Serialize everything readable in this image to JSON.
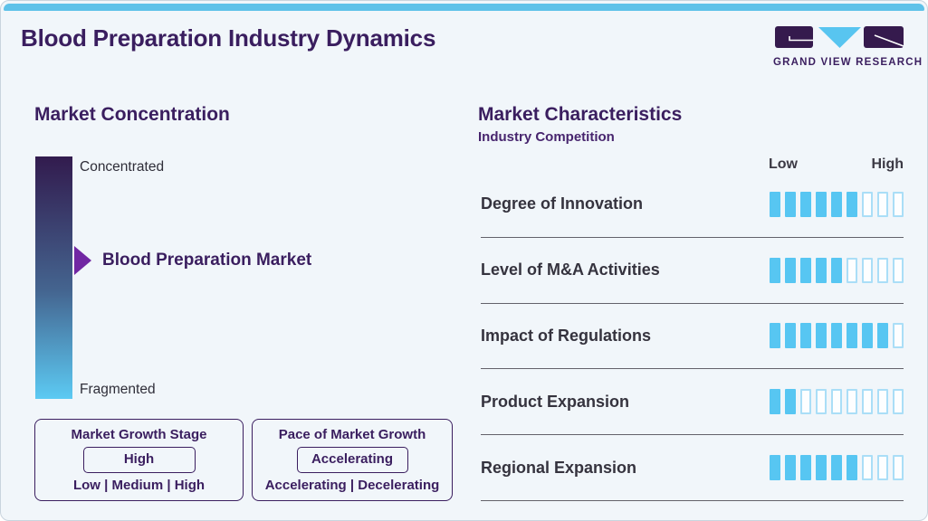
{
  "header": {
    "title": "Blood Preparation Industry Dynamics",
    "logo_text": "GRAND VIEW RESEARCH"
  },
  "concentration": {
    "heading": "Market Concentration",
    "top_label": "Concentrated",
    "bottom_label": "Fragmented",
    "pointer_label": "Blood Preparation Market",
    "growth_stage": {
      "title": "Market Growth Stage",
      "value": "High",
      "options": "Low | Medium | High"
    },
    "growth_pace": {
      "title": "Pace of Market Growth",
      "value": "Accelerating",
      "options": "Accelerating | Decelerating"
    }
  },
  "characteristics": {
    "heading": "Market Characteristics",
    "subtitle": "Industry Competition",
    "scale_low": "Low",
    "scale_high": "High",
    "rows": [
      {
        "label": "Degree of Innovation",
        "filled": 6,
        "total": 9
      },
      {
        "label": "Level of M&A Activities",
        "filled": 5,
        "total": 9
      },
      {
        "label": "Impact of Regulations",
        "filled": 8,
        "total": 9
      },
      {
        "label": "Product Expansion",
        "filled": 2,
        "total": 9
      },
      {
        "label": "Regional Expansion",
        "filled": 6,
        "total": 9
      }
    ]
  },
  "colors": {
    "brand_purple": "#3a1e5f",
    "accent_blue": "#57c6f2",
    "topbar_blue": "#5fc2e9",
    "arrow_purple": "#7127a3",
    "gradient_top": "#321b4e",
    "gradient_bottom": "#5ccaf3",
    "background": "#f1f6fa"
  },
  "chart_data": {
    "type": "bar",
    "title": "Market Characteristics",
    "subtitle": "Industry Competition",
    "categories": [
      "Degree of Innovation",
      "Level of M&A Activities",
      "Impact of Regulations",
      "Product Expansion",
      "Regional Expansion"
    ],
    "values": [
      6,
      5,
      8,
      2,
      6
    ],
    "scale": {
      "segments_per_row": 9,
      "min_label": "Low",
      "max_label": "High"
    },
    "market_concentration": {
      "scale_top": "Concentrated",
      "scale_bottom": "Fragmented",
      "marker_label": "Blood Preparation Market",
      "marker_position_pct_from_top": 43
    },
    "market_growth_stage": {
      "value": "High",
      "options": [
        "Low",
        "Medium",
        "High"
      ]
    },
    "pace_of_market_growth": {
      "value": "Accelerating",
      "options": [
        "Accelerating",
        "Decelerating"
      ]
    }
  }
}
